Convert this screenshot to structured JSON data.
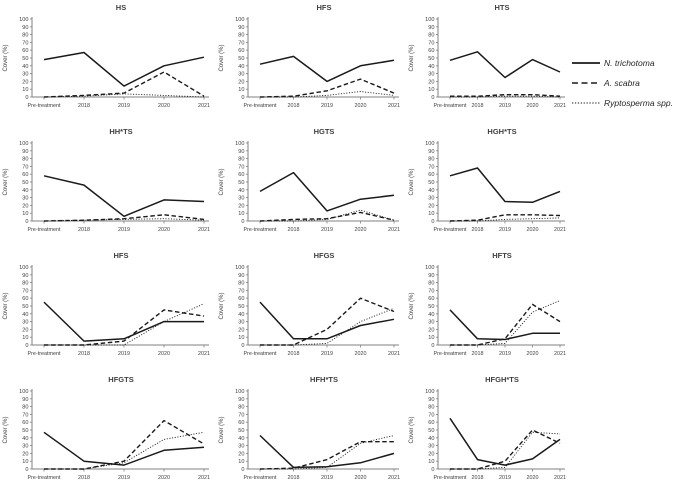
{
  "figure": {
    "y_axis_label": "Cover (%)",
    "x_categories": [
      "Pre-treatment",
      "2018",
      "2019",
      "2020",
      "2021"
    ],
    "y_ticks": [
      0,
      10,
      20,
      30,
      40,
      50,
      60,
      70,
      80,
      90,
      100
    ],
    "line_color": "#1a1a1a"
  },
  "legend": {
    "items": [
      {
        "label": "N. trichotoma",
        "style": "solid"
      },
      {
        "label": "A. scabra",
        "style": "dashed"
      },
      {
        "label": "Ryptosperma spp.",
        "style": "dotted"
      }
    ]
  },
  "chart_data": [
    {
      "type": "line",
      "title": "HS",
      "ylabel": "Cover (%)",
      "ylim": [
        0,
        100
      ],
      "categories": [
        "Pre-treatment",
        "2018",
        "2019",
        "2020",
        "2021"
      ],
      "series": [
        {
          "name": "N. trichotoma",
          "style": "solid",
          "values": [
            48,
            57,
            14,
            40,
            51
          ]
        },
        {
          "name": "A. scabra",
          "style": "dashed",
          "values": [
            0,
            2,
            5,
            32,
            1
          ]
        },
        {
          "name": "Ryptosperma spp.",
          "style": "dotted",
          "values": [
            0,
            1,
            4,
            2,
            0
          ]
        }
      ]
    },
    {
      "type": "line",
      "title": "HFS",
      "ylabel": "Cover (%)",
      "ylim": [
        0,
        100
      ],
      "categories": [
        "Pre-treatment",
        "2018",
        "2019",
        "2020",
        "2021"
      ],
      "series": [
        {
          "name": "N. trichotoma",
          "style": "solid",
          "values": [
            42,
            52,
            20,
            40,
            47
          ]
        },
        {
          "name": "A. scabra",
          "style": "dashed",
          "values": [
            0,
            1,
            8,
            23,
            5
          ]
        },
        {
          "name": "Ryptosperma spp.",
          "style": "dotted",
          "values": [
            0,
            0,
            2,
            7,
            2
          ]
        }
      ]
    },
    {
      "type": "line",
      "title": "HTS",
      "ylabel": "Cover (%)",
      "ylim": [
        0,
        100
      ],
      "categories": [
        "Pre-treatment",
        "2018",
        "2019",
        "2020",
        "2021"
      ],
      "series": [
        {
          "name": "N. trichotoma",
          "style": "solid",
          "values": [
            47,
            58,
            25,
            48,
            32
          ]
        },
        {
          "name": "A. scabra",
          "style": "dashed",
          "values": [
            1,
            1,
            3,
            3,
            1
          ]
        },
        {
          "name": "Ryptosperma spp.",
          "style": "dotted",
          "values": [
            0,
            0,
            1,
            1,
            0
          ]
        }
      ]
    },
    {
      "type": "line",
      "title": "HH*TS",
      "ylabel": "Cover (%)",
      "ylim": [
        0,
        100
      ],
      "categories": [
        "Pre-treatment",
        "2018",
        "2019",
        "2020",
        "2021"
      ],
      "series": [
        {
          "name": "N. trichotoma",
          "style": "solid",
          "values": [
            58,
            46,
            6,
            27,
            25
          ]
        },
        {
          "name": "A. scabra",
          "style": "dashed",
          "values": [
            0,
            1,
            3,
            8,
            2
          ]
        },
        {
          "name": "Ryptosperma spp.",
          "style": "dotted",
          "values": [
            0,
            1,
            2,
            3,
            1
          ]
        }
      ]
    },
    {
      "type": "line",
      "title": "HGTS",
      "ylabel": "Cover (%)",
      "ylim": [
        0,
        100
      ],
      "categories": [
        "Pre-treatment",
        "2018",
        "2019",
        "2020",
        "2021"
      ],
      "series": [
        {
          "name": "N. trichotoma",
          "style": "solid",
          "values": [
            38,
            62,
            13,
            28,
            33
          ]
        },
        {
          "name": "A. scabra",
          "style": "dashed",
          "values": [
            0,
            2,
            3,
            11,
            1
          ]
        },
        {
          "name": "Ryptosperma spp.",
          "style": "dotted",
          "values": [
            0,
            0,
            2,
            14,
            1
          ]
        }
      ]
    },
    {
      "type": "line",
      "title": "HGH*TS",
      "ylabel": "Cover (%)",
      "ylim": [
        0,
        100
      ],
      "categories": [
        "Pre-treatment",
        "2018",
        "2019",
        "2020",
        "2021"
      ],
      "series": [
        {
          "name": "N. trichotoma",
          "style": "solid",
          "values": [
            58,
            68,
            25,
            24,
            38
          ]
        },
        {
          "name": "A. scabra",
          "style": "dashed",
          "values": [
            0,
            1,
            8,
            8,
            7
          ]
        },
        {
          "name": "Ryptosperma spp.",
          "style": "dotted",
          "values": [
            0,
            0,
            2,
            3,
            4
          ]
        }
      ]
    },
    {
      "type": "line",
      "title": "HFS",
      "ylabel": "Cover (%)",
      "ylim": [
        0,
        100
      ],
      "categories": [
        "Pre-treatment",
        "2018",
        "2019",
        "2020",
        "2021"
      ],
      "series": [
        {
          "name": "N. trichotoma",
          "style": "solid",
          "values": [
            55,
            5,
            8,
            30,
            30
          ]
        },
        {
          "name": "A. scabra",
          "style": "dashed",
          "values": [
            0,
            0,
            5,
            45,
            37
          ]
        },
        {
          "name": "Ryptosperma spp.",
          "style": "dotted",
          "values": [
            0,
            0,
            0,
            30,
            53
          ]
        }
      ]
    },
    {
      "type": "line",
      "title": "HFGS",
      "ylabel": "Cover (%)",
      "ylim": [
        0,
        100
      ],
      "categories": [
        "Pre-treatment",
        "2018",
        "2019",
        "2020",
        "2021"
      ],
      "series": [
        {
          "name": "N. trichotoma",
          "style": "solid",
          "values": [
            55,
            8,
            8,
            25,
            33
          ]
        },
        {
          "name": "A. scabra",
          "style": "dashed",
          "values": [
            0,
            0,
            20,
            60,
            43
          ]
        },
        {
          "name": "Ryptosperma spp.",
          "style": "dotted",
          "values": [
            0,
            0,
            2,
            30,
            47
          ]
        }
      ]
    },
    {
      "type": "line",
      "title": "HFTS",
      "ylabel": "Cover (%)",
      "ylim": [
        0,
        100
      ],
      "categories": [
        "Pre-treatment",
        "2018",
        "2019",
        "2020",
        "2021"
      ],
      "series": [
        {
          "name": "N. trichotoma",
          "style": "solid",
          "values": [
            45,
            8,
            7,
            15,
            15
          ]
        },
        {
          "name": "A. scabra",
          "style": "dashed",
          "values": [
            0,
            0,
            8,
            52,
            30
          ]
        },
        {
          "name": "Ryptosperma spp.",
          "style": "dotted",
          "values": [
            0,
            0,
            2,
            42,
            57
          ]
        }
      ]
    },
    {
      "type": "line",
      "title": "HFGTS",
      "ylabel": "Cover (%)",
      "ylim": [
        0,
        100
      ],
      "categories": [
        "Pre-treatment",
        "2018",
        "2019",
        "2020",
        "2021"
      ],
      "series": [
        {
          "name": "N. trichotoma",
          "style": "solid",
          "values": [
            47,
            10,
            5,
            24,
            28
          ]
        },
        {
          "name": "A. scabra",
          "style": "dashed",
          "values": [
            0,
            0,
            10,
            62,
            32
          ]
        },
        {
          "name": "Ryptosperma spp.",
          "style": "dotted",
          "values": [
            0,
            0,
            8,
            38,
            47
          ]
        }
      ]
    },
    {
      "type": "line",
      "title": "HFH*TS",
      "ylabel": "Cover (%)",
      "ylim": [
        0,
        100
      ],
      "categories": [
        "Pre-treatment",
        "2018",
        "2019",
        "2020",
        "2021"
      ],
      "series": [
        {
          "name": "N. trichotoma",
          "style": "solid",
          "values": [
            43,
            2,
            3,
            8,
            20
          ]
        },
        {
          "name": "A. scabra",
          "style": "dashed",
          "values": [
            0,
            1,
            12,
            35,
            35
          ]
        },
        {
          "name": "Ryptosperma spp.",
          "style": "dotted",
          "values": [
            0,
            0,
            2,
            33,
            43
          ]
        }
      ]
    },
    {
      "type": "line",
      "title": "HFGH*TS",
      "ylabel": "Cover (%)",
      "ylim": [
        0,
        100
      ],
      "categories": [
        "Pre-treatment",
        "2018",
        "2019",
        "2020",
        "2021"
      ],
      "series": [
        {
          "name": "N. trichotoma",
          "style": "solid",
          "values": [
            65,
            12,
            5,
            13,
            38
          ]
        },
        {
          "name": "A. scabra",
          "style": "dashed",
          "values": [
            0,
            0,
            10,
            50,
            33
          ]
        },
        {
          "name": "Ryptosperma spp.",
          "style": "dotted",
          "values": [
            0,
            0,
            2,
            47,
            45
          ]
        }
      ]
    }
  ]
}
